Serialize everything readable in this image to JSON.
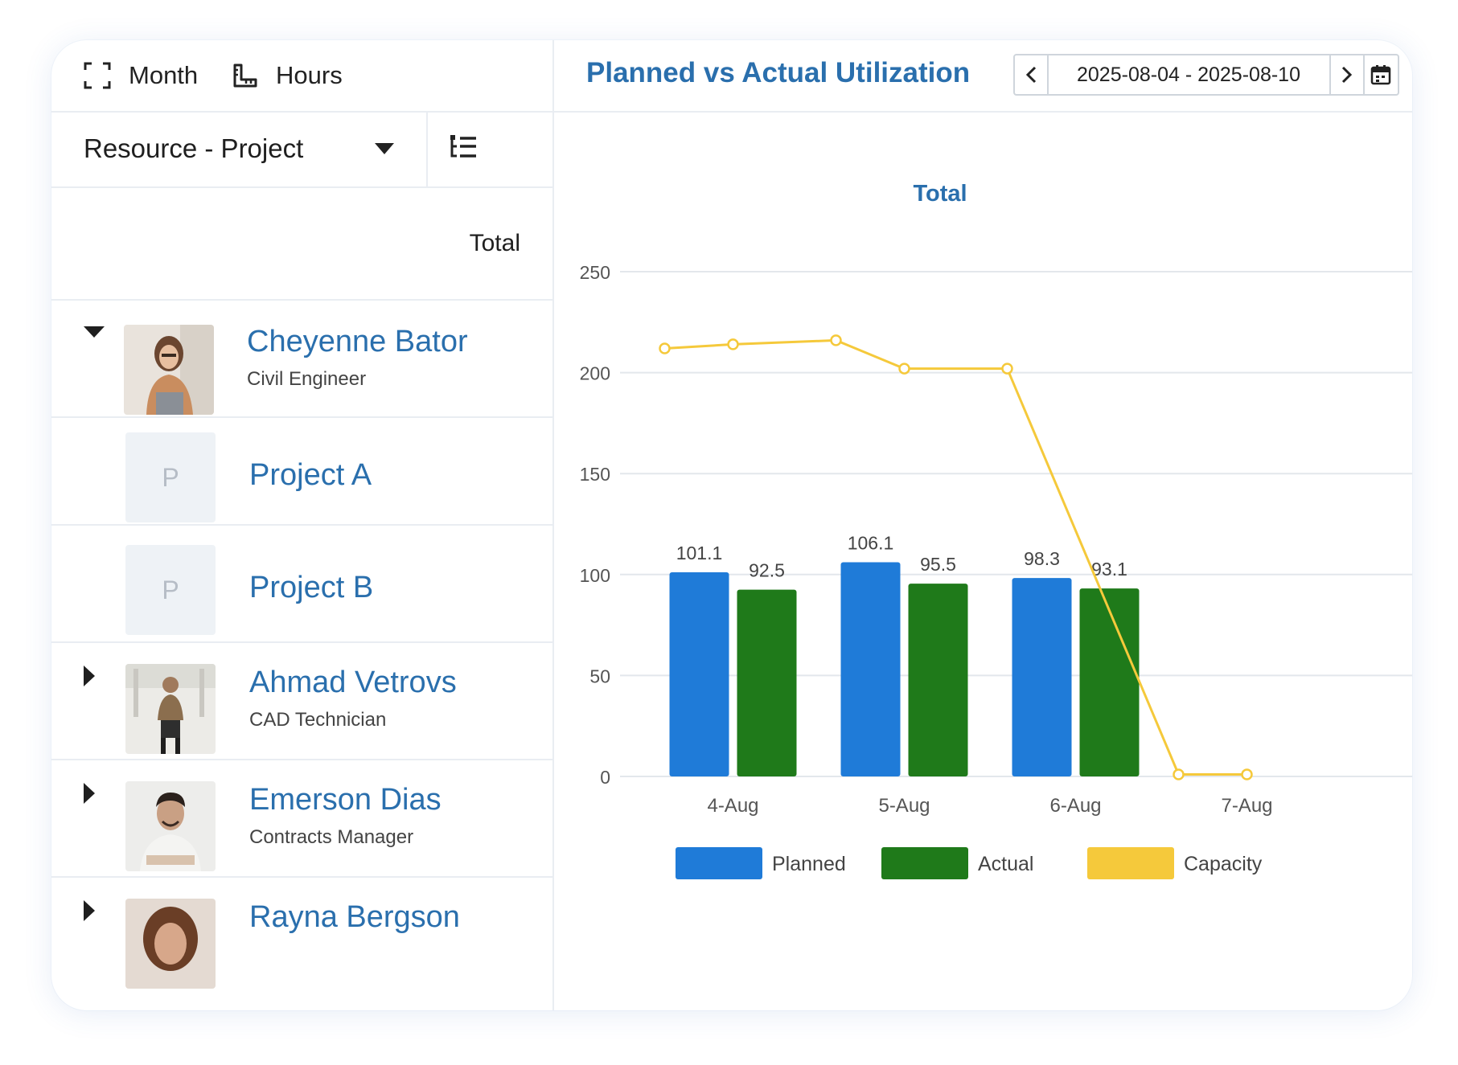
{
  "toolbar": {
    "month_label": "Month",
    "hours_label": "Hours"
  },
  "grouping": {
    "selected": "Resource - Project"
  },
  "table": {
    "total_header": "Total"
  },
  "rows": [
    {
      "type": "resource",
      "name": "Cheyenne Bator",
      "role": "Civil Engineer",
      "expanded": true,
      "avatar": "woman-holding-folder"
    },
    {
      "type": "project",
      "initial": "P",
      "name": "Project A"
    },
    {
      "type": "project",
      "initial": "P",
      "name": "Project B"
    },
    {
      "type": "resource",
      "name": "Ahmad Vetrovs",
      "role": "CAD Technician",
      "expanded": false,
      "avatar": "man-sitting-on-stool"
    },
    {
      "type": "resource",
      "name": "Emerson Dias",
      "role": "Contracts Manager",
      "expanded": false,
      "avatar": "smiling-man-arms-crossed"
    },
    {
      "type": "resource",
      "name": "Rayna Bergson",
      "role": "",
      "expanded": false,
      "avatar": "woman-portrait"
    }
  ],
  "header": {
    "title": "Planned vs Actual Utilization",
    "date_range": "2025-08-04 - 2025-08-10",
    "prev_icon": "chevron-left-icon",
    "next_icon": "chevron-right-icon",
    "calendar_icon": "calendar-icon"
  },
  "colors": {
    "accent": "#2a6fad",
    "planned": "#1f7bd8",
    "actual": "#1f7a1a",
    "capacity": "#f5c93b"
  },
  "chart_data": {
    "type": "bar",
    "title": "Total",
    "categories": [
      "4-Aug",
      "5-Aug",
      "6-Aug",
      "7-Aug"
    ],
    "ylim": [
      0,
      250
    ],
    "yticks": [
      0,
      50,
      100,
      150,
      200,
      250
    ],
    "grid": true,
    "legend": "bottom",
    "series": [
      {
        "name": "Planned",
        "type": "bar",
        "color": "#1f7bd8",
        "values": [
          101.1,
          106.1,
          98.3,
          null
        ]
      },
      {
        "name": "Actual",
        "type": "bar",
        "color": "#1f7a1a",
        "values": [
          92.5,
          95.5,
          93.1,
          null
        ]
      },
      {
        "name": "Capacity",
        "type": "line",
        "color": "#f5c93b",
        "points": [
          {
            "x": "4-Aug",
            "y": 212
          },
          {
            "x": "4-Aug",
            "y": 214
          },
          {
            "x": "5-Aug",
            "y": 216
          },
          {
            "x": "5-Aug",
            "y": 202
          },
          {
            "x": "6-Aug",
            "y": 202
          },
          {
            "x": "7-Aug",
            "y": 1
          },
          {
            "x": "7-Aug",
            "y": 1
          }
        ]
      }
    ]
  }
}
